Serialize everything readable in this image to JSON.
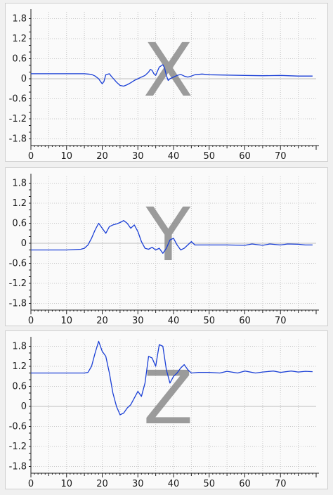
{
  "chart_data": [
    {
      "type": "line",
      "annotation": "X",
      "xlim": [
        0,
        80
      ],
      "ylim": [
        -2.0,
        2.0
      ],
      "xticks": [
        0,
        10,
        20,
        30,
        40,
        50,
        60,
        70
      ],
      "yticks": [
        1.8,
        1.2,
        0.6,
        0,
        -0.6,
        -1.2,
        -1.8
      ],
      "ytick_labels": [
        "1.8",
        "1.2",
        "0.6",
        "0",
        "-0.6",
        "-1.2",
        "-1.8"
      ],
      "grid": true,
      "colors": {
        "series": "#1a3fd6",
        "zero_line": "#bdbdbd",
        "grid": "#c8c8c8"
      },
      "series": [
        {
          "x": [
            0,
            5,
            10,
            15,
            16,
            17,
            18,
            19,
            19.5,
            20,
            20.5,
            21,
            22,
            22.5,
            23,
            24,
            25,
            26,
            27,
            28,
            29,
            30,
            31,
            32,
            33,
            33.5,
            34,
            34.5,
            35,
            36,
            37,
            37.5,
            38,
            38.5,
            39,
            40,
            41,
            42,
            43,
            44,
            45,
            46,
            48,
            50,
            55,
            60,
            65,
            70,
            75,
            79
          ],
          "y": [
            0.15,
            0.15,
            0.15,
            0.15,
            0.14,
            0.13,
            0.08,
            0.0,
            -0.08,
            -0.15,
            -0.08,
            0.12,
            0.15,
            0.08,
            0.02,
            -0.1,
            -0.2,
            -0.22,
            -0.18,
            -0.12,
            -0.05,
            0.0,
            0.05,
            0.1,
            0.2,
            0.28,
            0.25,
            0.15,
            0.1,
            0.35,
            0.42,
            0.32,
            0.1,
            -0.05,
            0.0,
            0.05,
            0.1,
            0.13,
            0.08,
            0.05,
            0.08,
            0.12,
            0.14,
            0.12,
            0.11,
            0.1,
            0.09,
            0.1,
            0.08,
            0.08
          ]
        }
      ]
    },
    {
      "type": "line",
      "annotation": "Y",
      "xlim": [
        0,
        80
      ],
      "ylim": [
        -2.0,
        2.0
      ],
      "xticks": [
        0,
        10,
        20,
        30,
        40,
        50,
        60,
        70
      ],
      "yticks": [
        1.8,
        1.2,
        0.6,
        0,
        -0.6,
        -1.2,
        -1.8
      ],
      "ytick_labels": [
        "1.8",
        "1.2",
        "0.6",
        "0",
        "-0.6",
        "-1.2",
        "-1.8"
      ],
      "grid": true,
      "colors": {
        "series": "#1a3fd6",
        "zero_line": "#bdbdbd",
        "grid": "#c8c8c8"
      },
      "series": [
        {
          "x": [
            0,
            5,
            10,
            14,
            15,
            16,
            17,
            18,
            19,
            20,
            21,
            22,
            23,
            24,
            25,
            26,
            27,
            28,
            29,
            30,
            31,
            32,
            33,
            34,
            35,
            36,
            37,
            38,
            39,
            40,
            41,
            42,
            43,
            44,
            45,
            46,
            48,
            50,
            55,
            60,
            62,
            65,
            67,
            70,
            72,
            75,
            77,
            79
          ],
          "y": [
            -0.2,
            -0.2,
            -0.2,
            -0.18,
            -0.15,
            -0.05,
            0.15,
            0.4,
            0.6,
            0.45,
            0.3,
            0.5,
            0.55,
            0.58,
            0.62,
            0.68,
            0.6,
            0.45,
            0.55,
            0.35,
            0.05,
            -0.15,
            -0.18,
            -0.12,
            -0.2,
            -0.15,
            -0.3,
            -0.15,
            0.1,
            0.15,
            -0.05,
            -0.2,
            -0.15,
            -0.05,
            0.05,
            -0.05,
            -0.05,
            -0.05,
            -0.05,
            -0.06,
            -0.02,
            -0.06,
            -0.02,
            -0.05,
            -0.02,
            -0.03,
            -0.05,
            -0.05
          ]
        }
      ]
    },
    {
      "type": "line",
      "annotation": "Z",
      "xlim": [
        0,
        80
      ],
      "ylim": [
        -2.0,
        2.0
      ],
      "xticks": [
        0,
        10,
        20,
        30,
        40,
        50,
        60,
        70
      ],
      "yticks": [
        1.8,
        1.2,
        0.6,
        0,
        -0.6,
        -1.2,
        -1.8
      ],
      "ytick_labels": [
        "1.8",
        "1.2",
        "0.6",
        "0",
        "-0.6",
        "-1.2",
        "-1.8"
      ],
      "grid": true,
      "colors": {
        "series": "#1a3fd6",
        "zero_line": "#bdbdbd",
        "grid": "#c8c8c8"
      },
      "series": [
        {
          "x": [
            0,
            5,
            10,
            15,
            16,
            17,
            18,
            19,
            20,
            21,
            22,
            23,
            24,
            25,
            26,
            27,
            28,
            29,
            30,
            31,
            32,
            33,
            34,
            35,
            36,
            37,
            38,
            39,
            40,
            41,
            42,
            43,
            44,
            45,
            47,
            50,
            53,
            55,
            58,
            60,
            63,
            65,
            68,
            70,
            73,
            75,
            77,
            79
          ],
          "y": [
            1.0,
            1.0,
            1.0,
            1.0,
            1.02,
            1.2,
            1.6,
            1.95,
            1.65,
            1.5,
            1.0,
            0.4,
            0.0,
            -0.25,
            -0.2,
            -0.05,
            0.05,
            0.25,
            0.45,
            0.3,
            0.7,
            1.5,
            1.45,
            1.2,
            1.85,
            1.8,
            1.1,
            0.7,
            0.9,
            1.0,
            1.15,
            1.25,
            1.1,
            1.0,
            1.02,
            1.02,
            1.0,
            1.05,
            1.0,
            1.06,
            1.0,
            1.03,
            1.06,
            1.02,
            1.06,
            1.03,
            1.05,
            1.04
          ]
        }
      ]
    }
  ]
}
